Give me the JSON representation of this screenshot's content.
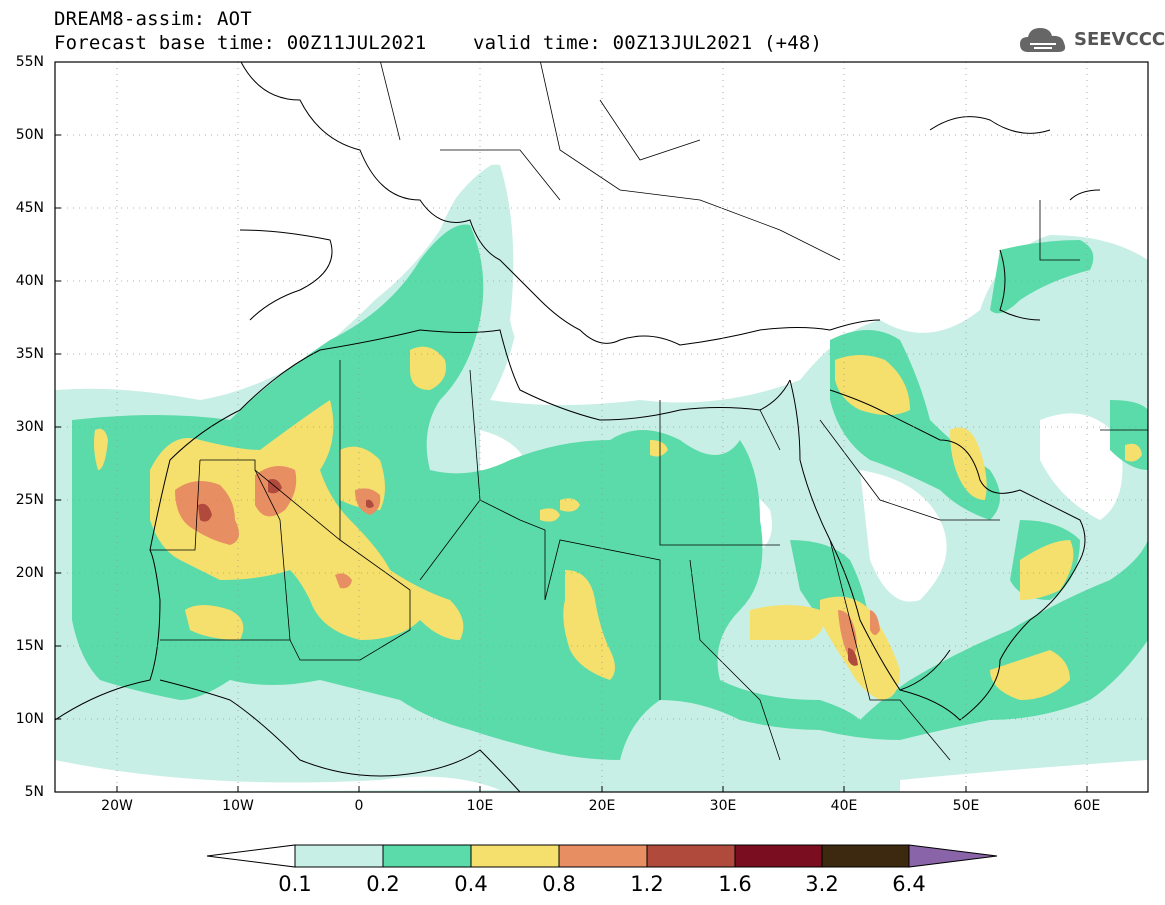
{
  "header": {
    "title_line1": "DREAM8-assim: AOT",
    "title_line2": "Forecast base time: 00Z11JUL2021    valid time: 00Z13JUL2021 (+48)"
  },
  "logo": {
    "text": "SEEVCCC",
    "icon": "cloud-icon"
  },
  "axes": {
    "lat_labels": [
      "55N",
      "50N",
      "45N",
      "40N",
      "35N",
      "30N",
      "25N",
      "20N",
      "15N",
      "10N",
      "5N"
    ],
    "lon_labels": [
      "20W",
      "10W",
      "0",
      "10E",
      "20E",
      "30E",
      "40E",
      "50E",
      "60E"
    ]
  },
  "legend": {
    "labels": [
      "0.1",
      "0.2",
      "0.4",
      "0.8",
      "1.2",
      "1.6",
      "3.2",
      "6.4"
    ],
    "colors": [
      "#c8efe6",
      "#5cdbaa",
      "#f5e06d",
      "#e88e63",
      "#b04a3c",
      "#7a0e20",
      "#3d2810",
      "#8a64a8"
    ]
  },
  "colors": {
    "level1": "#c8efe6",
    "level2": "#5cdbaa",
    "level3": "#f5e06d",
    "level4": "#e88e63",
    "level5": "#b04a3c"
  }
}
